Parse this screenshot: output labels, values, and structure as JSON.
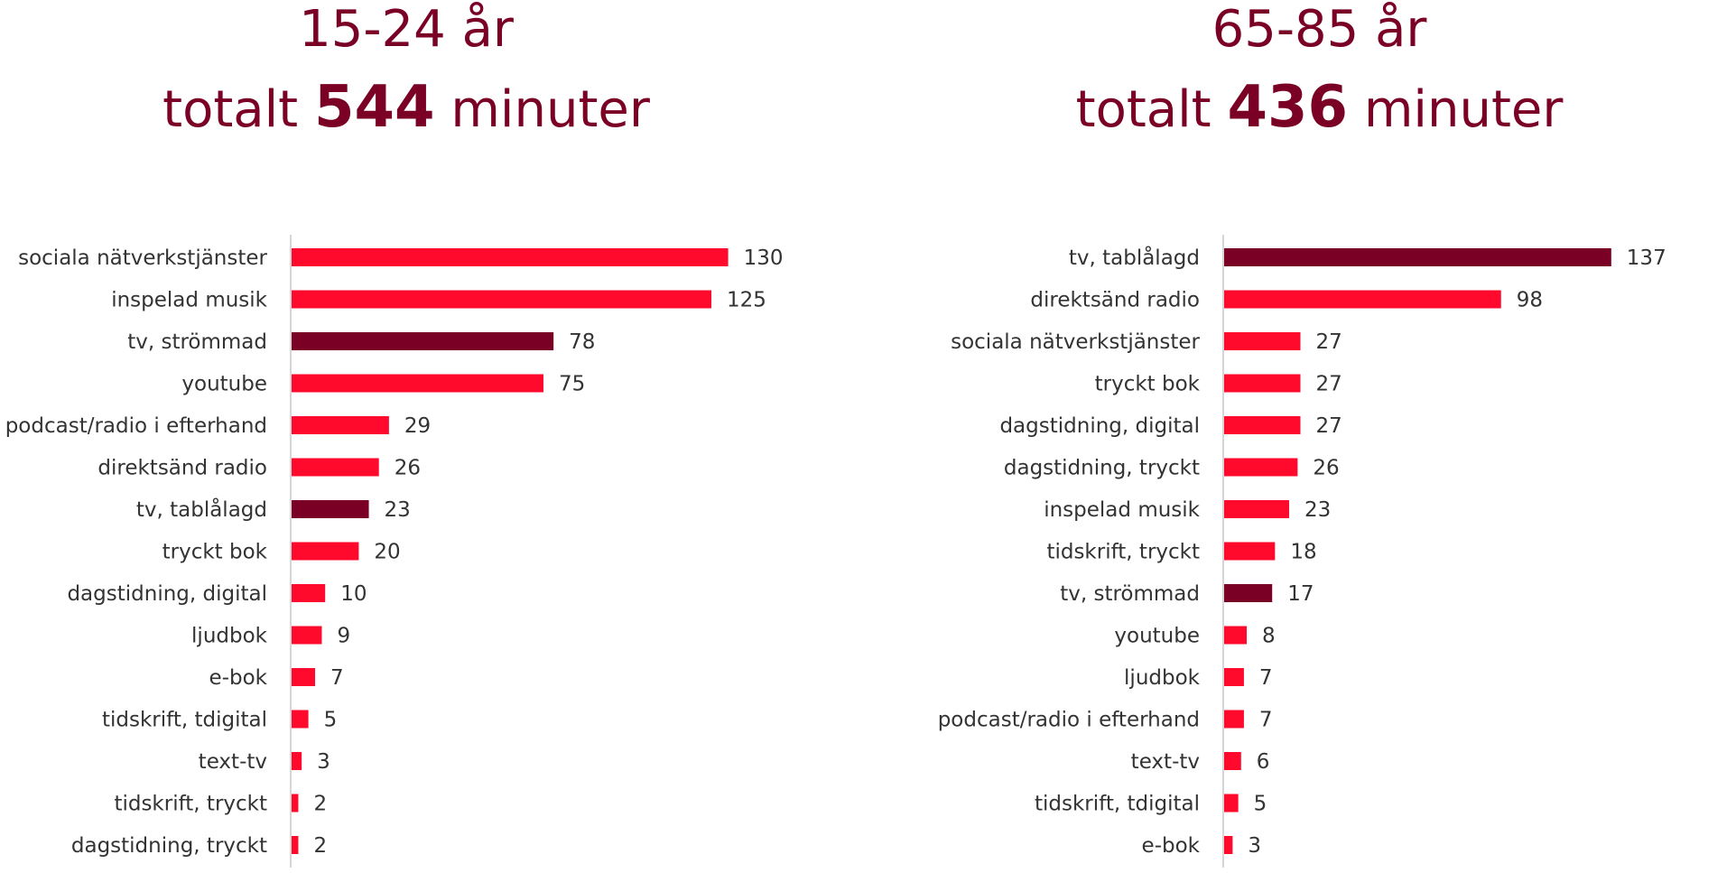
{
  "colors": {
    "accent": "#ff0a2d",
    "highlight": "#7a0026",
    "axis": "#d6d6d6",
    "label": "#333333",
    "title": "#7a0026"
  },
  "charts": [
    {
      "title_line1": "15-24 år",
      "title_prefix": "totalt",
      "title_total": "544",
      "title_suffix": "minuter"
    },
    {
      "title_line1": "65-85 år",
      "title_prefix": "totalt",
      "title_total": "436",
      "title_suffix": "minuter"
    }
  ],
  "chart_data": [
    {
      "type": "bar",
      "orientation": "horizontal",
      "categories": [
        "sociala nätverkstjänster",
        "inspelad musik",
        "tv, strömmad",
        "youtube",
        "podcast/radio i efterhand",
        "direktsänd radio",
        "tv, tablålagd",
        "tryckt bok",
        "dagstidning, digital",
        "ljudbok",
        "e-bok",
        "tidskrift, tdigital",
        "text-tv",
        "tidskrift, tryckt",
        "dagstidning, tryckt"
      ],
      "values": [
        130,
        125,
        78,
        75,
        29,
        26,
        23,
        20,
        10,
        9,
        7,
        5,
        3,
        2,
        2
      ],
      "highlighted": [
        "tv, strömmad",
        "tv, tablålagd"
      ],
      "grid": false,
      "legend": "none"
    },
    {
      "type": "bar",
      "orientation": "horizontal",
      "categories": [
        "tv, tablålagd",
        "direktsänd radio",
        "sociala nätverkstjänster",
        "tryckt bok",
        "dagstidning, digital",
        "dagstidning, tryckt",
        "inspelad musik",
        "tidskrift, tryckt",
        "tv, strömmad",
        "youtube",
        "ljudbok",
        "podcast/radio i efterhand",
        "text-tv",
        "tidskrift, tdigital",
        "e-bok"
      ],
      "values": [
        137,
        98,
        27,
        27,
        27,
        26,
        23,
        18,
        17,
        8,
        7,
        7,
        6,
        5,
        3
      ],
      "highlighted": [
        "tv, tablålagd",
        "tv, strömmad"
      ],
      "grid": false,
      "legend": "none"
    }
  ]
}
